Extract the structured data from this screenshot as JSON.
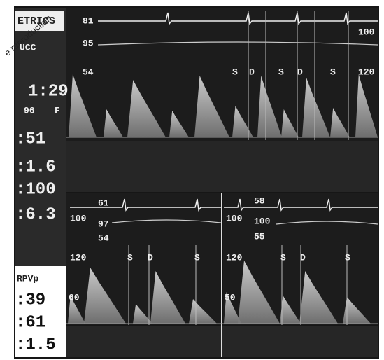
{
  "watermark": "e reproduction",
  "sidebar": {
    "header": "ETRICS",
    "rows": [
      "UCC",
      "1:29",
      "96",
      "F",
      ":51",
      ":1.6",
      ":100",
      ":6.3"
    ],
    "lower_header": "RPVp",
    "lower_rows": [
      ":39",
      ":61",
      ":1.5"
    ]
  },
  "top_panel": {
    "labels": [
      "81",
      "95",
      "54",
      "100",
      "120"
    ],
    "phases": [
      "S",
      "D",
      "S",
      "D",
      "S"
    ]
  },
  "bottom_left_panel": {
    "labels": [
      "61",
      "100",
      "97",
      "54",
      "120",
      "60"
    ],
    "phases": [
      "S",
      "D",
      "S"
    ]
  },
  "bottom_right_panel": {
    "labels": [
      "58",
      "100",
      "100",
      "55",
      "120",
      "50"
    ],
    "phases": [
      "S",
      "D",
      "S"
    ]
  }
}
